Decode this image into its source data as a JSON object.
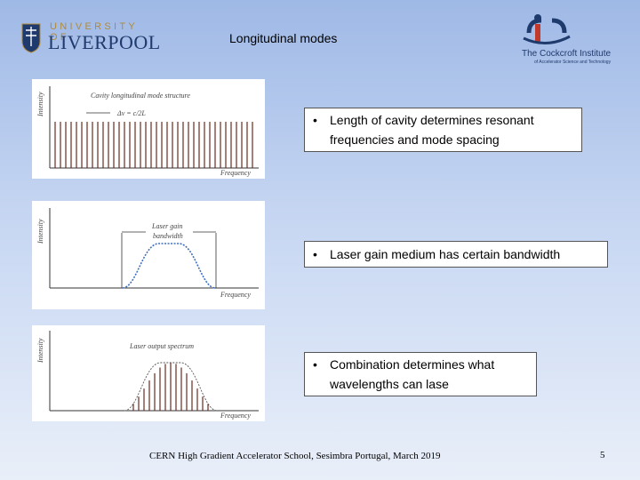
{
  "header": {
    "title": "Longitudinal modes",
    "university_logo": {
      "line1": "UNIVERSITY OF",
      "line2": "LIVERPOOL"
    },
    "institute_logo": {
      "name": "The Cockcroft Institute",
      "subtitle": "of Accelerator Science and Technology"
    }
  },
  "panels": [
    {
      "caption": "Cavity longitudinal mode structure",
      "spacing_label": "Δν = c/2L",
      "ylabel": "Intensity",
      "xlabel": "Frequency"
    },
    {
      "caption_line1": "Laser gain",
      "caption_line2": "bandwidth",
      "ylabel": "Intensity",
      "xlabel": "Frequency"
    },
    {
      "caption": "Laser output spectrum",
      "ylabel": "Intensity",
      "xlabel": "Frequency"
    }
  ],
  "bullets": [
    {
      "marker": "•",
      "line1": "Length of cavity determines resonant",
      "line2": "frequencies and mode spacing"
    },
    {
      "marker": "•",
      "line1": "Laser gain medium has certain bandwidth",
      "line2": ""
    },
    {
      "marker": "•",
      "line1": "Combination determines what",
      "line2": "wavelengths can lase"
    }
  ],
  "footer": {
    "text": "CERN High Gradient Accelerator School, Sesimbra Portugal, March 2019",
    "page_number": "5"
  },
  "colors": {
    "mode_line": "#6b2a1e",
    "gain_curve": "#3f6fc0",
    "logo_navy": "#1f3a6d",
    "logo_gold": "#b08a3a"
  }
}
